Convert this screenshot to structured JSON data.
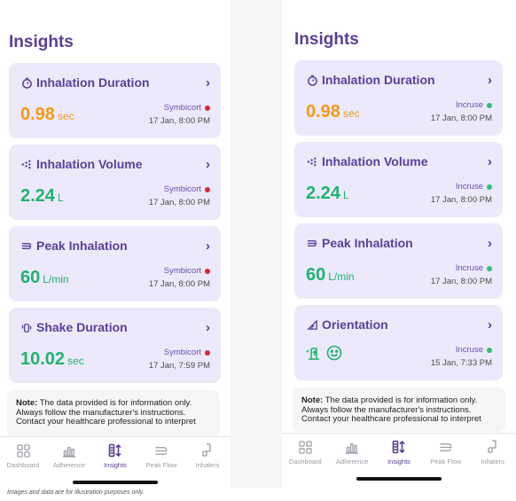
{
  "footnote": "Images and data are for illustration purposes only.",
  "colors": {
    "accent": "#5b3f96",
    "orange": "#f59a16",
    "green": "#21b36e",
    "card_bg": "#ece9fa",
    "status_red": "#d9263e",
    "status_green": "#2fbf71"
  },
  "left": {
    "title": "Insights",
    "cards": [
      {
        "icon": "stopwatch-icon",
        "title": "Inhalation Duration",
        "value": "0.98",
        "unit": "sec",
        "value_color": "orange",
        "medication": "Symbicort",
        "status": "red",
        "date": "17 Jan, 8:00 PM"
      },
      {
        "icon": "dots-icon",
        "title": "Inhalation Volume",
        "value": "2.24",
        "unit": "L",
        "value_color": "green",
        "medication": "Symbicort",
        "status": "red",
        "date": "17 Jan, 8:00 PM"
      },
      {
        "icon": "wind-icon",
        "title": "Peak Inhalation",
        "value": "60",
        "unit": "L/min",
        "value_color": "green",
        "medication": "Symbicort",
        "status": "red",
        "date": "17 Jan, 8:00 PM"
      },
      {
        "icon": "shake-icon",
        "title": "Shake Duration",
        "value": "10.02",
        "unit": "sec",
        "value_color": "green",
        "medication": "Symbicort",
        "status": "red",
        "date": "17 Jan, 7:59 PM"
      }
    ],
    "note": {
      "label": "Note:",
      "line1": " The data provided is for information only.",
      "line2": "Always follow the manufacturer's instructions.",
      "line3": "Contact your healthcare professional to interpret"
    }
  },
  "right": {
    "title": "Insights",
    "cards": [
      {
        "icon": "stopwatch-icon",
        "title": "Inhalation Duration",
        "value": "0.98",
        "unit": "sec",
        "value_color": "orange",
        "medication": "Incruse",
        "status": "green",
        "date": "17 Jan, 8:00 PM"
      },
      {
        "icon": "dots-icon",
        "title": "Inhalation Volume",
        "value": "2.24",
        "unit": "L",
        "value_color": "green",
        "medication": "Incruse",
        "status": "green",
        "date": "17 Jan, 8:00 PM"
      },
      {
        "icon": "wind-icon",
        "title": "Peak Inhalation",
        "value": "60",
        "unit": "L/min",
        "value_color": "green",
        "medication": "Incruse",
        "status": "green",
        "date": "17 Jan, 8:00 PM"
      },
      {
        "icon": "orientation-icon",
        "title": "Orientation",
        "medication": "Incruse",
        "status": "green",
        "date": "15 Jan, 7:33 PM",
        "result_icons": [
          "inhaler-upright-icon",
          "smiley-icon"
        ]
      }
    ],
    "note": {
      "label": "Note:",
      "line1": " The data provided is for information only.",
      "line2": "Always follow the manufacturer's instructions.",
      "line3": "Contact your healthcare professional to interpret"
    }
  },
  "nav": [
    {
      "label": "Dashboard",
      "icon": "grid-icon",
      "active": false
    },
    {
      "label": "Adherence",
      "icon": "bar-chart-icon",
      "active": false
    },
    {
      "label": "Insights",
      "icon": "insights-icon",
      "active": true
    },
    {
      "label": "Peak Flow",
      "icon": "peak-flow-icon",
      "active": false
    },
    {
      "label": "Inhalers",
      "icon": "inhaler-icon",
      "active": false
    }
  ]
}
